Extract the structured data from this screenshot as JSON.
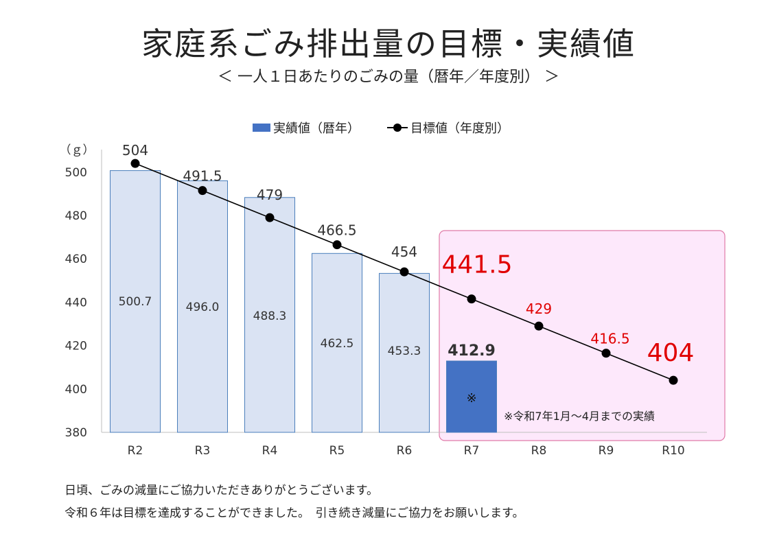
{
  "title": "家庭系ごみ排出量の目標・実績値",
  "subtitle": "＜ 一人１日あたりのごみの量（暦年／年度別） ＞",
  "footer": {
    "line1": "日頃、ごみの減量にご協力いただきありがとうございます。",
    "line2": "令和６年は目標を達成することができました。　引き続き減量にご協力をお願いします。"
  },
  "chart_data": {
    "type": "bar",
    "categories": [
      "R2",
      "R3",
      "R4",
      "R5",
      "R6",
      "R7",
      "R8",
      "R9",
      "R10"
    ],
    "ylabel": "（ｇ）",
    "ylim": [
      380,
      505
    ],
    "yticks": [
      380,
      400,
      420,
      440,
      460,
      480,
      500
    ],
    "series": [
      {
        "name": "実績値（暦年）",
        "kind": "bar",
        "values": [
          500.7,
          496.0,
          488.3,
          462.5,
          453.3,
          412.9,
          null,
          null,
          null
        ],
        "labels": [
          "500.7",
          "496.0",
          "488.3",
          "462.5",
          "453.3",
          "412.9",
          "",
          "",
          ""
        ],
        "color_light": "#dae3f3",
        "color_dark": "#4472c4",
        "border": "#4a7ebb"
      },
      {
        "name": "目標値（年度別）",
        "kind": "line",
        "values": [
          504,
          491.5,
          479,
          466.5,
          454,
          441.5,
          429,
          416.5,
          404
        ],
        "labels": [
          "504",
          "491.5",
          "479",
          "466.5",
          "454",
          "441.5",
          "429",
          "416.5",
          "404"
        ],
        "color": "#000000",
        "future_label_color": "#e00000"
      }
    ],
    "bar_mark": "※",
    "highlight_region": {
      "from_category": "R7",
      "to_category": "R10",
      "fill": "#fde8fb",
      "border": "#e07aa8",
      "note": "※令和7年1月～4月までの実績"
    },
    "legend_position": "top"
  }
}
